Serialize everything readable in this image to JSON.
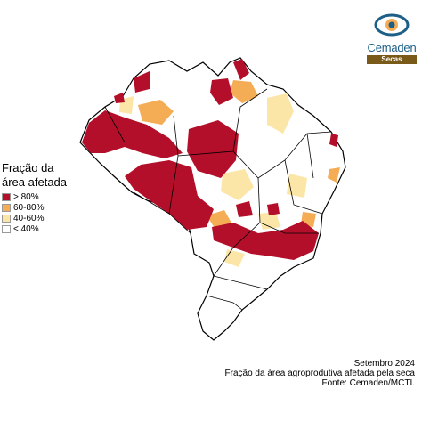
{
  "colors": {
    "severe": "#b40f2a",
    "high": "#f5ad55",
    "moderate": "#fbe6a7",
    "low": "#ffffff",
    "borders": "#000000",
    "logo_blue": "#1d5f86",
    "logo_gold": "#7a5a18"
  },
  "logo": {
    "name": "Cemaden",
    "tag": "Secas"
  },
  "legend": {
    "title_line1": "Fração da",
    "title_line2": "área afetada",
    "items": [
      {
        "label": "> 80%",
        "color": "#b40f2a"
      },
      {
        "label": "60-80%",
        "color": "#f5ad55"
      },
      {
        "label": "40-60%",
        "color": "#fbe6a7"
      },
      {
        "label": "< 40%",
        "color": "#ffffff"
      }
    ]
  },
  "footer": {
    "line1": "Setembro 2024",
    "line2": "Fração da área agroprodutiva afetada pela seca",
    "line3": "Fonte: Cemaden/MCTI."
  }
}
